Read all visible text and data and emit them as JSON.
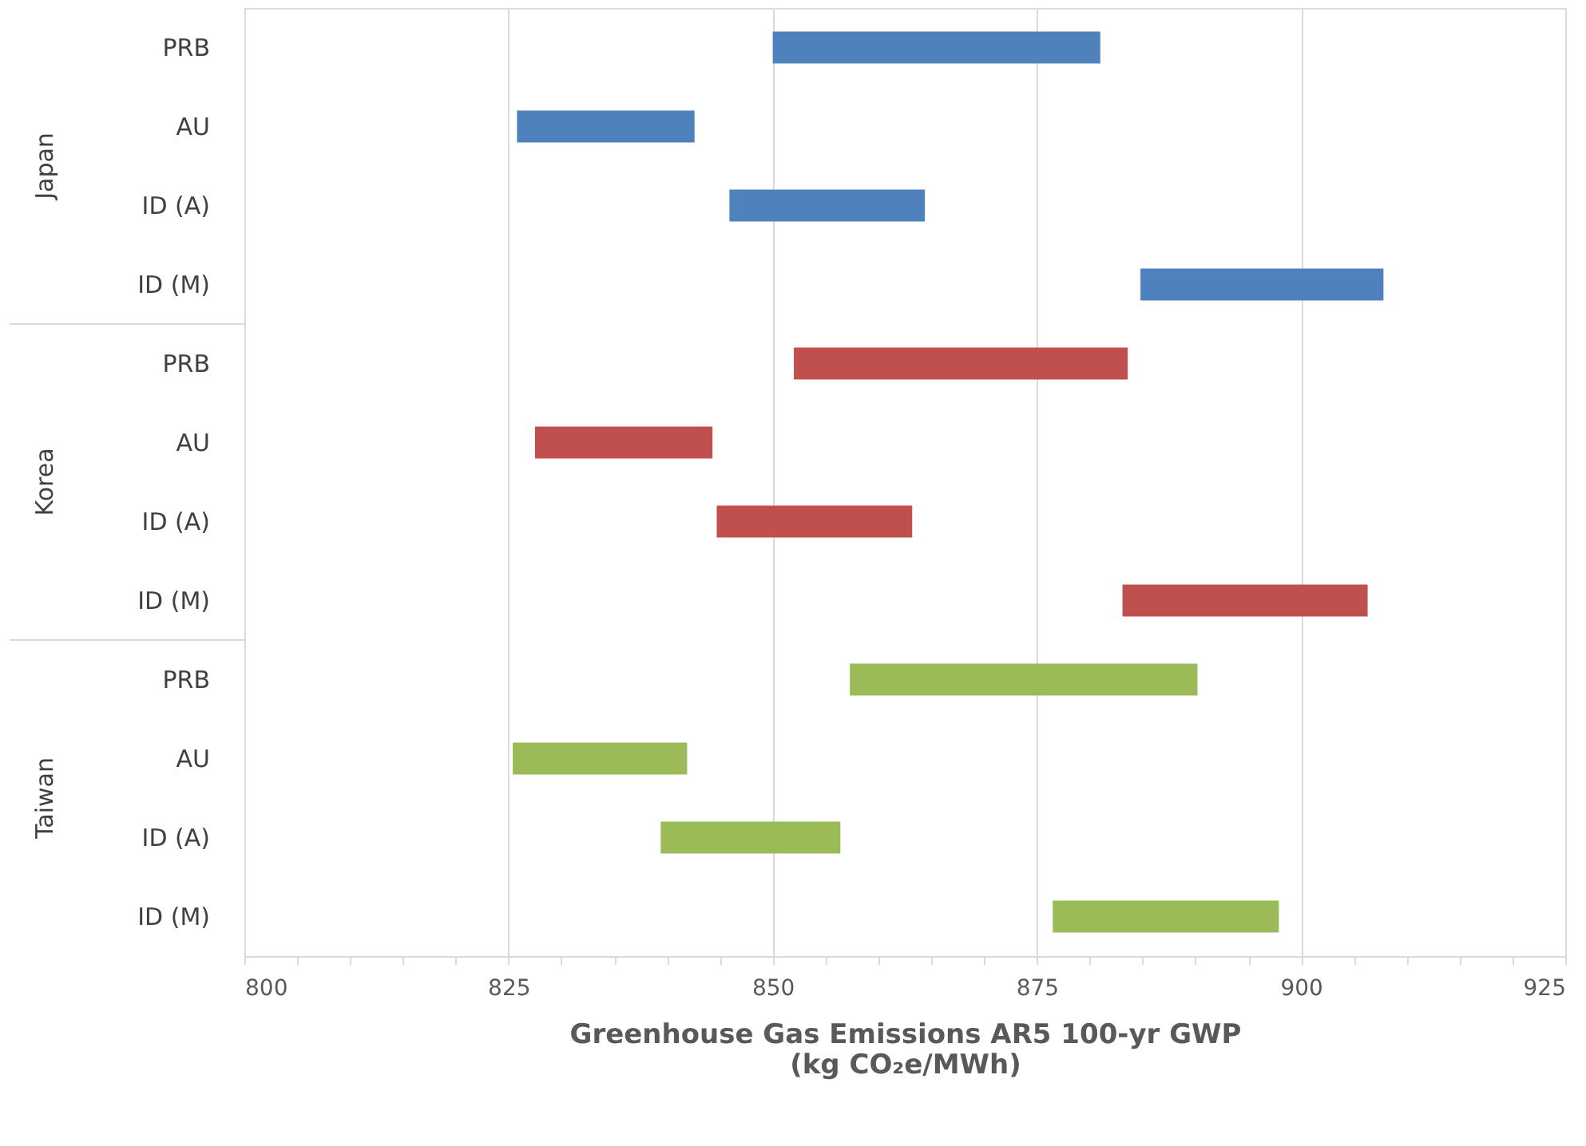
{
  "chart_data": {
    "type": "bar",
    "orientation": "horizontal",
    "xlabel": "Greenhouse Gas Emissions AR5 100-yr GWP\n(kg CO₂e/MWh)",
    "categories": [
      "PRB",
      "AU",
      "ID (A)",
      "ID (M)",
      "PRB",
      "AU",
      "ID (A)",
      "ID (M)",
      "PRB",
      "AU",
      "ID (A)",
      "ID (M)"
    ],
    "series": [
      {
        "color": "#4f81bd",
        "base": [
          850.0,
          825.8,
          845.9,
          884.8,
          null,
          null,
          null,
          null,
          null,
          null,
          null,
          null
        ],
        "values": [
          31.0,
          16.8,
          18.5,
          23.0,
          null,
          null,
          null,
          null,
          null,
          null,
          null,
          null
        ]
      },
      {
        "color": "#c0504d",
        "base": [
          null,
          null,
          null,
          null,
          852.0,
          827.5,
          844.7,
          883.1,
          null,
          null,
          null,
          null
        ],
        "values": [
          null,
          null,
          null,
          null,
          31.6,
          16.8,
          18.5,
          23.2,
          null,
          null,
          null,
          null
        ]
      },
      {
        "color": "#9bbb59",
        "base": [
          null,
          null,
          null,
          null,
          null,
          null,
          null,
          null,
          857.3,
          825.4,
          839.4,
          876.5
        ],
        "values": [
          null,
          null,
          null,
          null,
          null,
          null,
          null,
          null,
          32.9,
          16.5,
          17.0,
          21.4
        ]
      }
    ],
    "xlim": [
      800,
      925
    ],
    "xticks": [
      800,
      {
        "value": 805,
        "label": null
      },
      {
        "value": 810,
        "label": null
      },
      {
        "value": 815,
        "label": null
      },
      {
        "value": 820,
        "label": null
      },
      825,
      {
        "value": 830,
        "label": null
      },
      {
        "value": 835,
        "label": null
      },
      {
        "value": 840,
        "label": null
      },
      {
        "value": 845,
        "label": null
      },
      850,
      {
        "value": 855,
        "label": null
      },
      {
        "value": 860,
        "label": null
      },
      {
        "value": 865,
        "label": null
      },
      {
        "value": 870,
        "label": null
      },
      875,
      {
        "value": 880,
        "label": null
      },
      {
        "value": 885,
        "label": null
      },
      {
        "value": 890,
        "label": null
      },
      {
        "value": 895,
        "label": null
      },
      900,
      {
        "value": 905,
        "label": null
      },
      {
        "value": 910,
        "label": null
      },
      {
        "value": 915,
        "label": null
      },
      {
        "value": 920,
        "label": null
      },
      925
    ],
    "annotations": [
      "Japan",
      "Korea",
      "Taiwan"
    ],
    "grid": "x",
    "legend": false
  }
}
